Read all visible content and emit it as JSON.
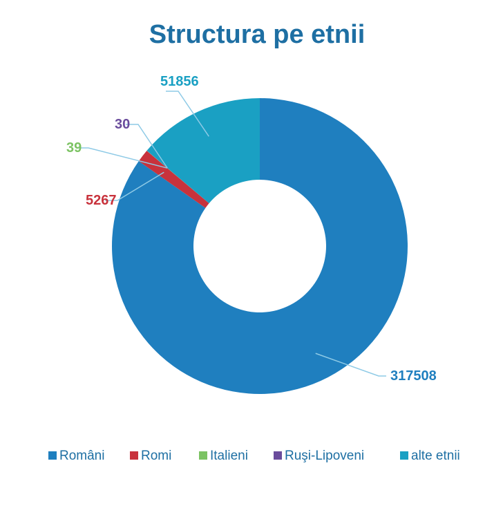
{
  "chart_data": {
    "type": "pie",
    "donut": true,
    "title": "Structura pe etnii",
    "series": [
      {
        "name": "Români",
        "value": 317508,
        "label": "317508",
        "color": "#1f7fbf"
      },
      {
        "name": "Romi",
        "value": 5267,
        "label": "5267",
        "color": "#c8323c"
      },
      {
        "name": "Italieni",
        "value": 39,
        "label": "39",
        "color": "#7cc363"
      },
      {
        "name": "Ruşi-Lipoveni",
        "value": 30,
        "label": "30",
        "color": "#6a4c9c"
      },
      {
        "name": "alte etnii",
        "value": 51856,
        "label": "51856",
        "color": "#1aa0c3"
      }
    ],
    "legend_position": "bottom",
    "title_color": "#1e6fa3"
  }
}
